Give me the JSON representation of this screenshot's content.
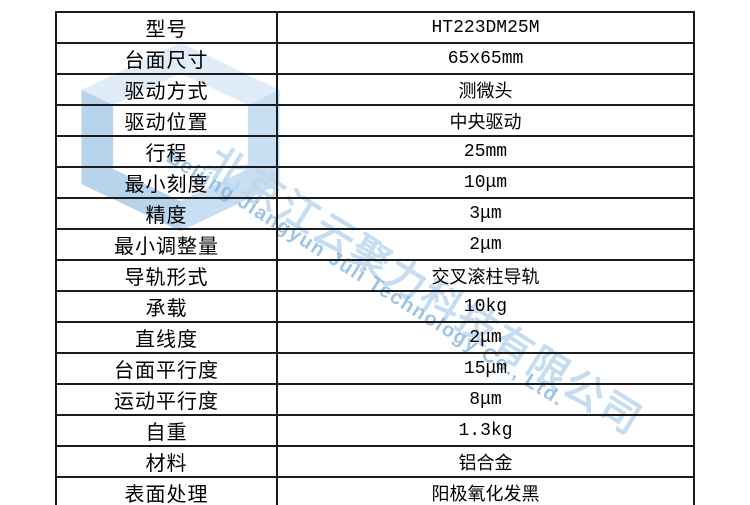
{
  "page": {
    "background": "#ffffff"
  },
  "spec_table": {
    "border_color": "#1c1c1c",
    "text_color": "#000000",
    "rows": [
      {
        "label": "型号",
        "value": "HT223DM25M"
      },
      {
        "label": "台面尺寸",
        "value": "65x65mm"
      },
      {
        "label": "驱动方式",
        "value": "测微头"
      },
      {
        "label": "驱动位置",
        "value": "中央驱动"
      },
      {
        "label": "行程",
        "value": "25mm"
      },
      {
        "label": "最小刻度",
        "value": "10μm"
      },
      {
        "label": "精度",
        "value": "3μm"
      },
      {
        "label": "最小调整量",
        "value": "2μm"
      },
      {
        "label": "导轨形式",
        "value": "交叉滚柱导轨"
      },
      {
        "label": "承载",
        "value": "10kg"
      },
      {
        "label": "直线度",
        "value": "2μm"
      },
      {
        "label": "台面平行度",
        "value": "15μm"
      },
      {
        "label": "运动平行度",
        "value": "8μm"
      },
      {
        "label": "自重",
        "value": "1.3kg"
      },
      {
        "label": "材料",
        "value": "铝合金"
      },
      {
        "label": "表面处理",
        "value": "阳极氧化发黑"
      }
    ]
  },
  "watermark": {
    "company_cn": "北京江云聚力科技有限公司",
    "company_en": "Beijing Jiangyun Juli Technology Co., Ltd.",
    "color_cn": "#bdd7ee",
    "color_en": "#86b6e0",
    "logo_color_light": "#c8def2",
    "logo_color_mid": "#9cc4e8",
    "logo_color_dark": "#7fb2dd"
  }
}
